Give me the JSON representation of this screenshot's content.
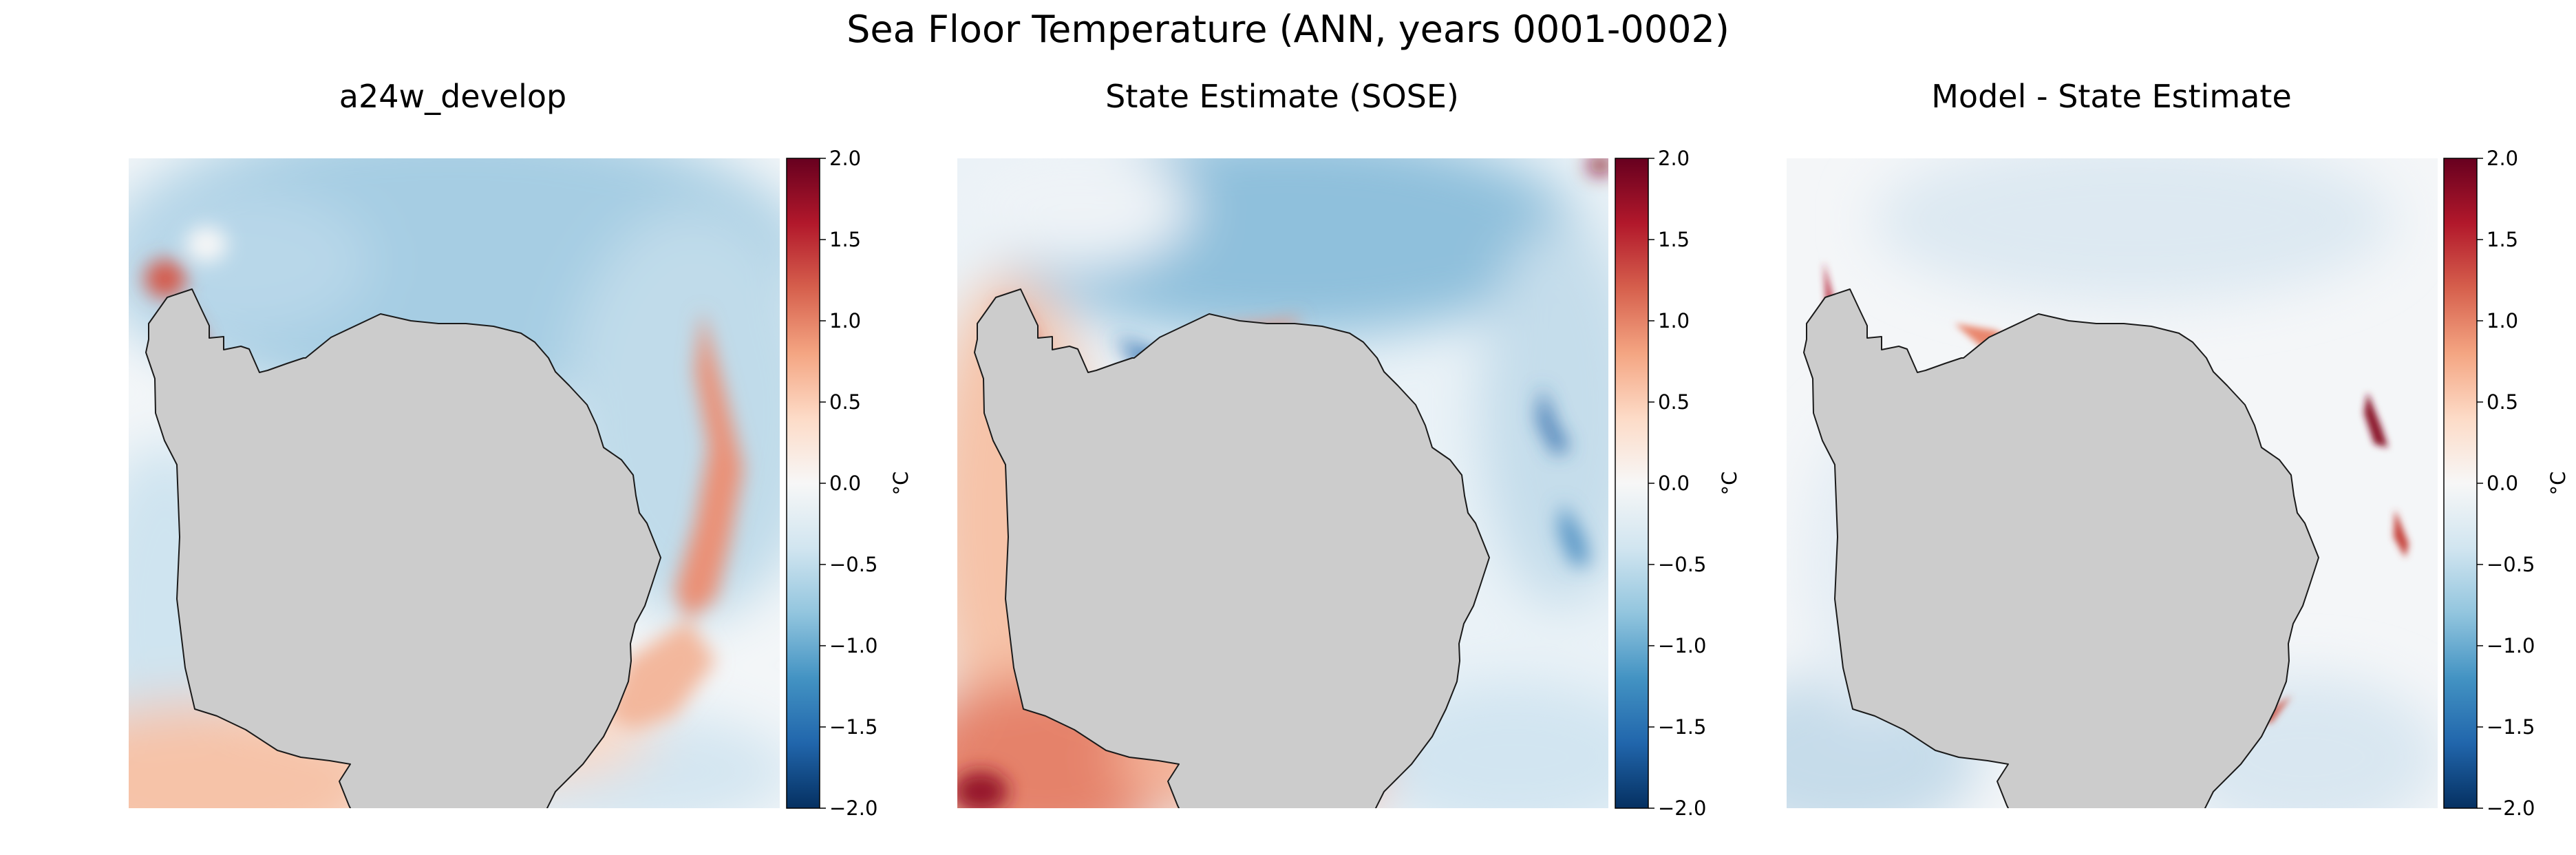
{
  "chart_data": {
    "type": "heatmap",
    "title": "Sea Floor Temperature (ANN, years 0001-0002)",
    "panels": [
      {
        "title": "a24w_develop",
        "colorbar": {
          "label": "°C",
          "vmin": -2.0,
          "vmax": 2.0,
          "ticks": [
            "2.0",
            "1.5",
            "1.0",
            "0.5",
            "0.0",
            "−0.5",
            "−1.0",
            "−1.5",
            "−2.0"
          ],
          "cmap": "RdBu_r"
        }
      },
      {
        "title": "State Estimate (SOSE)",
        "colorbar": {
          "label": "°C",
          "vmin": -2.0,
          "vmax": 2.0,
          "ticks": [
            "2.0",
            "1.5",
            "1.0",
            "0.5",
            "0.0",
            "−0.5",
            "−1.0",
            "−1.5",
            "−2.0"
          ],
          "cmap": "RdBu_r"
        }
      },
      {
        "title": "Model - State Estimate",
        "colorbar": {
          "label": "°C",
          "vmin": -2.0,
          "vmax": 2.0,
          "ticks": [
            "2.0",
            "1.5",
            "1.0",
            "0.5",
            "0.0",
            "−0.5",
            "−1.0",
            "−1.5",
            "−2.0"
          ],
          "cmap": "RdBu_r"
        }
      }
    ]
  },
  "colors": {
    "land": "#cccccc",
    "coast": "#1a1a1a",
    "cmap_stops": [
      "#053061",
      "#2166ac",
      "#4393c3",
      "#92c5de",
      "#d1e5f0",
      "#f7f7f7",
      "#fddbc7",
      "#f4a582",
      "#d6604d",
      "#b2182b",
      "#67001f"
    ]
  }
}
